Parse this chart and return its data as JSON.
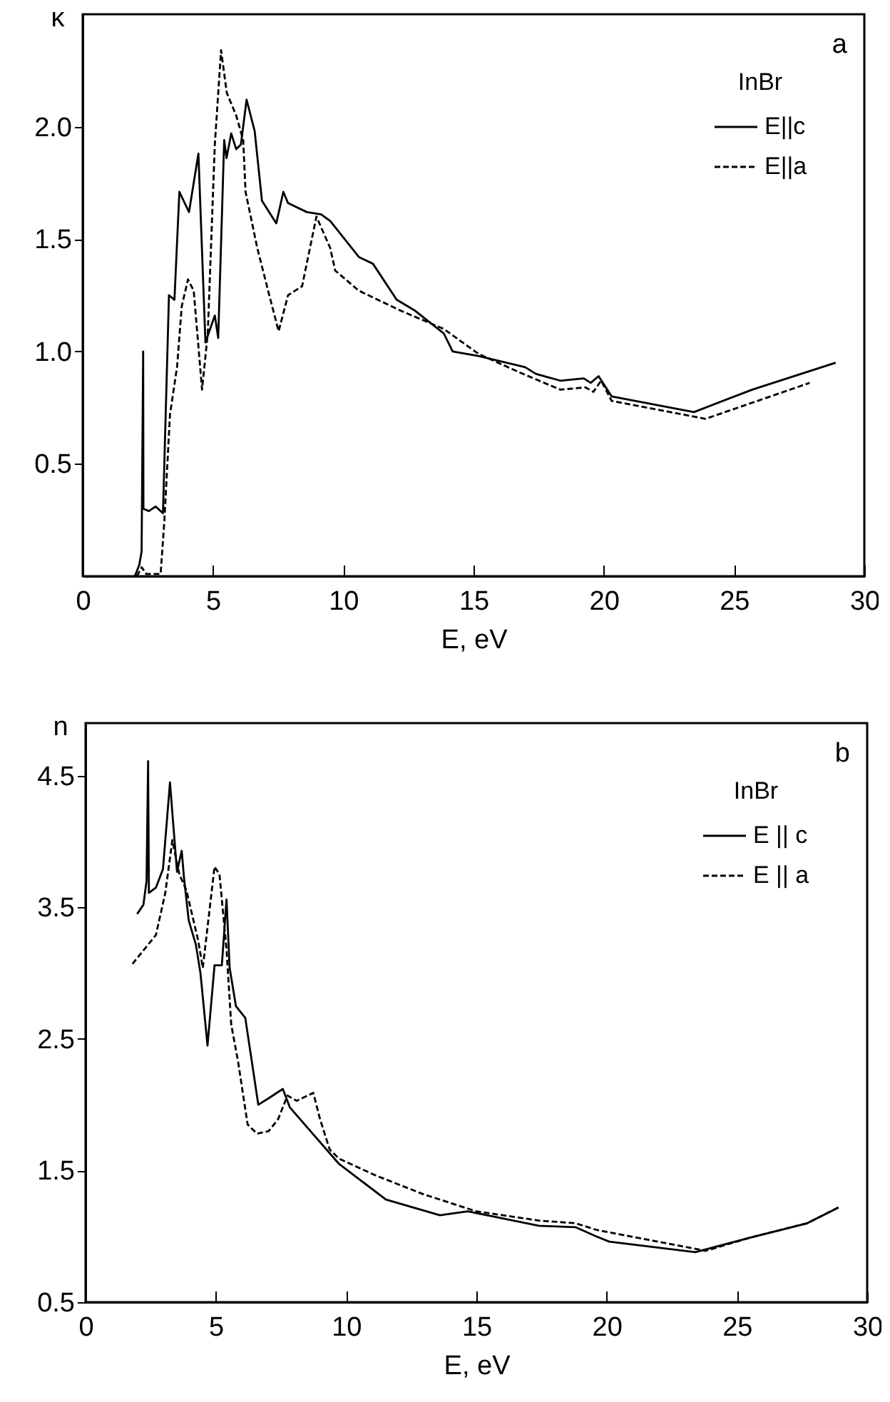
{
  "chart_data": [
    {
      "type": "line",
      "xlabel": "E, eV",
      "ylabel": "κ",
      "legend_title": "InBr",
      "legend": "top right",
      "grid": false,
      "annotations": [
        "a"
      ],
      "xlim": [
        0,
        30
      ],
      "xticks": [
        0,
        5,
        10,
        15,
        20,
        25,
        30
      ],
      "ylim": [
        0,
        2.5
      ],
      "yticks": [
        0.5,
        {
          "value": 1,
          "label": "1.0"
        },
        1.5,
        {
          "value": 2,
          "label": "2.0"
        }
      ],
      "series": [
        {
          "name": "E||c",
          "color": "#000000",
          "line_style": "solid",
          "x": [
            2.0,
            2.17,
            2.26,
            2.32,
            2.33,
            2.54,
            2.8,
            3.08,
            3.17,
            3.31,
            3.52,
            3.71,
            4.08,
            4.44,
            4.71,
            4.89,
            5.07,
            5.2,
            5.43,
            5.52,
            5.7,
            5.89,
            6.07,
            6.29,
            6.6,
            6.88,
            7.43,
            7.7,
            7.88,
            8.6,
            9.15,
            9.5,
            10.6,
            11.14,
            12.05,
            12.77,
            13.86,
            14.2,
            15.18,
            16.98,
            17.4,
            18.33,
            19.23,
            19.5,
            19.8,
            20.3,
            23.46,
            25.7,
            28.9
          ],
          "values": [
            0,
            0.05,
            0.11,
            1.0,
            0.3,
            0.29,
            0.31,
            0.28,
            0.66,
            1.25,
            1.23,
            1.71,
            1.62,
            1.88,
            1.04,
            1.1,
            1.16,
            1.06,
            1.94,
            1.86,
            1.97,
            1.9,
            1.92,
            2.12,
            1.98,
            1.67,
            1.57,
            1.71,
            1.66,
            1.62,
            1.61,
            1.58,
            1.42,
            1.39,
            1.23,
            1.18,
            1.08,
            1.0,
            0.98,
            0.93,
            0.9,
            0.87,
            0.88,
            0.86,
            0.89,
            0.8,
            0.73,
            0.83,
            0.95
          ]
        },
        {
          "name": "E||a",
          "color": "#000000",
          "line_style": "dashed",
          "x": [
            2.08,
            2.26,
            2.44,
            2.99,
            3.13,
            3.35,
            3.62,
            3.8,
            4.04,
            4.26,
            4.58,
            4.8,
            5.07,
            5.31,
            5.53,
            5.89,
            6.16,
            6.25,
            6.7,
            7.16,
            7.52,
            7.88,
            8.42,
            8.97,
            9.5,
            9.69,
            10.6,
            12.23,
            13.86,
            15.18,
            16.7,
            18.33,
            19.3,
            19.6,
            19.9,
            20.3,
            23.9,
            27.9
          ],
          "values": [
            0,
            0.04,
            0.01,
            0.01,
            0.24,
            0.72,
            0.93,
            1.2,
            1.32,
            1.27,
            0.83,
            1.08,
            1.92,
            2.34,
            2.15,
            2.05,
            1.94,
            1.71,
            1.46,
            1.25,
            1.09,
            1.25,
            1.29,
            1.6,
            1.46,
            1.36,
            1.27,
            1.18,
            1.1,
            0.99,
            0.91,
            0.83,
            0.84,
            0.82,
            0.87,
            0.78,
            0.7,
            0.86
          ]
        }
      ]
    },
    {
      "type": "line",
      "xlabel": "E, eV",
      "ylabel": "n",
      "legend_title": "InBr",
      "legend": "top right",
      "grid": false,
      "annotations": [
        "b"
      ],
      "xlim": [
        0,
        30
      ],
      "xticks": [
        0,
        5,
        10,
        15,
        20,
        25,
        30
      ],
      "ylim": [
        0.5,
        4.9
      ],
      "yticks": [
        0.5,
        1.5,
        2.5,
        3.5,
        4.5
      ],
      "series": [
        {
          "name": "E || c",
          "color": "#000000",
          "line_style": "solid",
          "x": [
            1.98,
            2.22,
            2.34,
            2.4,
            2.43,
            2.7,
            2.97,
            3.24,
            3.33,
            3.51,
            3.69,
            3.78,
            3.96,
            4.23,
            4.41,
            4.68,
            4.95,
            5.23,
            5.41,
            5.53,
            5.77,
            6.13,
            6.63,
            7.03,
            7.57,
            7.84,
            9.73,
            11.53,
            13.6,
            14.67,
            17.4,
            18.8,
            19.6,
            20.1,
            23.4,
            25.5,
            27.7,
            28.9
          ],
          "values": [
            3.45,
            3.52,
            3.7,
            4.61,
            3.61,
            3.65,
            3.79,
            4.45,
            4.22,
            3.77,
            3.93,
            3.72,
            3.4,
            3.22,
            3.0,
            2.45,
            3.06,
            3.06,
            3.56,
            3.04,
            2.75,
            2.66,
            2.0,
            2.05,
            2.12,
            1.98,
            1.55,
            1.28,
            1.16,
            1.19,
            1.08,
            1.07,
            1.0,
            0.96,
            0.88,
            0.99,
            1.1,
            1.22
          ]
        },
        {
          "name": "E || a",
          "color": "#000000",
          "line_style": "dashed",
          "x": [
            1.8,
            2.7,
            3.06,
            3.33,
            3.6,
            3.87,
            4.32,
            4.5,
            4.95,
            5.14,
            5.41,
            5.59,
            5.86,
            6.22,
            6.58,
            7.03,
            7.39,
            7.75,
            8.1,
            8.74,
            9.0,
            9.37,
            9.73,
            11.17,
            12.97,
            15.0,
            17.4,
            18.8,
            19.6,
            23.8,
            25.5,
            27.7,
            28.9
          ],
          "values": [
            3.07,
            3.29,
            3.61,
            4.01,
            3.75,
            3.63,
            3.25,
            3.04,
            3.81,
            3.75,
            3.18,
            2.61,
            2.32,
            1.85,
            1.78,
            1.8,
            1.89,
            2.07,
            2.03,
            2.09,
            1.89,
            1.66,
            1.59,
            1.46,
            1.32,
            1.19,
            1.12,
            1.1,
            1.05,
            0.89,
            0.99,
            1.1,
            1.22
          ]
        }
      ]
    }
  ]
}
